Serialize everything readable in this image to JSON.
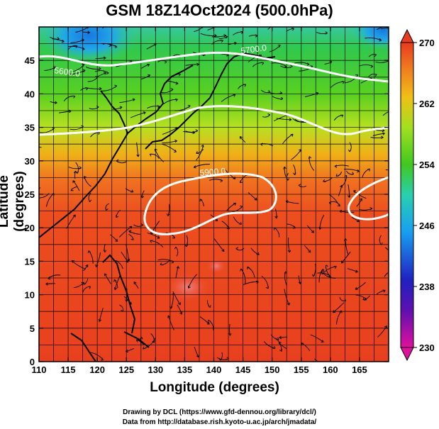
{
  "title": "GSM 18Z14Oct2024 (500.0hPa)",
  "xlabel": "Longitude (degrees)",
  "ylabel": "Latitude  (degrees)",
  "credits": {
    "line1": "Drawing by DCL (https://www.gfd-dennou.org/library/dcl/)",
    "line2": "Data from http://database.rish.kyoto-u.ac.jp/arch/jmadata/"
  },
  "map": {
    "lon_range": [
      110,
      170
    ],
    "lat_range": [
      0,
      50
    ],
    "lon_ticks": [
      "110",
      "115",
      "120",
      "125",
      "130",
      "135",
      "140",
      "145",
      "150",
      "155",
      "160",
      "165"
    ],
    "lat_ticks": [
      "0",
      "5",
      "10",
      "15",
      "20",
      "25",
      "30",
      "35",
      "40",
      "45"
    ],
    "contour_labels": [
      "5700.0",
      "5900.0",
      "5600.0"
    ],
    "colorbar": {
      "labels": [
        "270",
        "262",
        "254",
        "246",
        "238",
        "230"
      ],
      "range": [
        230,
        270
      ],
      "colors": [
        "#e0109e",
        "#2020c0",
        "#18a0f0",
        "#28d8a0",
        "#40c820",
        "#a0e020",
        "#f0c018",
        "#f07820",
        "#e83a1e"
      ]
    }
  }
}
